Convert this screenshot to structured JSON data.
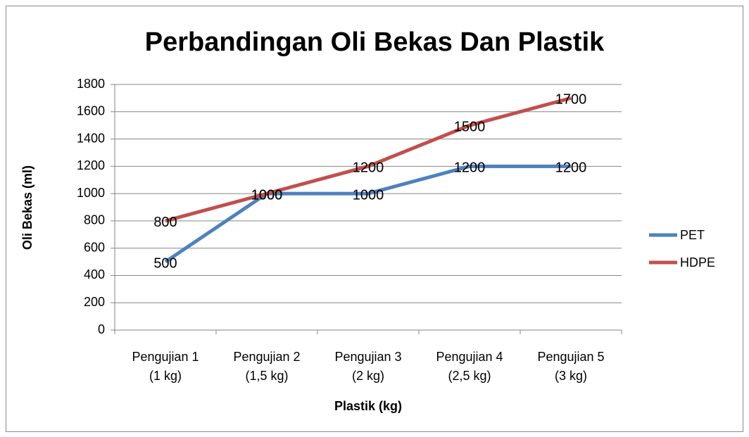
{
  "chart_data": {
    "type": "line",
    "title": "Perbandingan Oli Bekas Dan Plastik",
    "x_label": "Plastik (kg)",
    "y_label": "Oli Bekas (ml)",
    "categories": [
      "Pengujian 1\n(1 kg)",
      "Pengujian 2\n(1,5 kg)",
      "Pengujian 3\n(2 kg)",
      "Pengujian 4\n(2,5 kg)",
      "Pengujian 5\n(3 kg)"
    ],
    "series": [
      {
        "name": "PET",
        "color": "#4f81bd",
        "values": [
          500,
          1000,
          1000,
          1200,
          1200
        ]
      },
      {
        "name": "HDPE",
        "color": "#c0504d",
        "values": [
          800,
          1000,
          1200,
          1500,
          1700
        ]
      }
    ],
    "ylim": [
      0,
      1800
    ],
    "yticks": [
      0,
      200,
      400,
      600,
      800,
      1000,
      1200,
      1400,
      1600,
      1800
    ],
    "grid": true,
    "legend": "right"
  }
}
